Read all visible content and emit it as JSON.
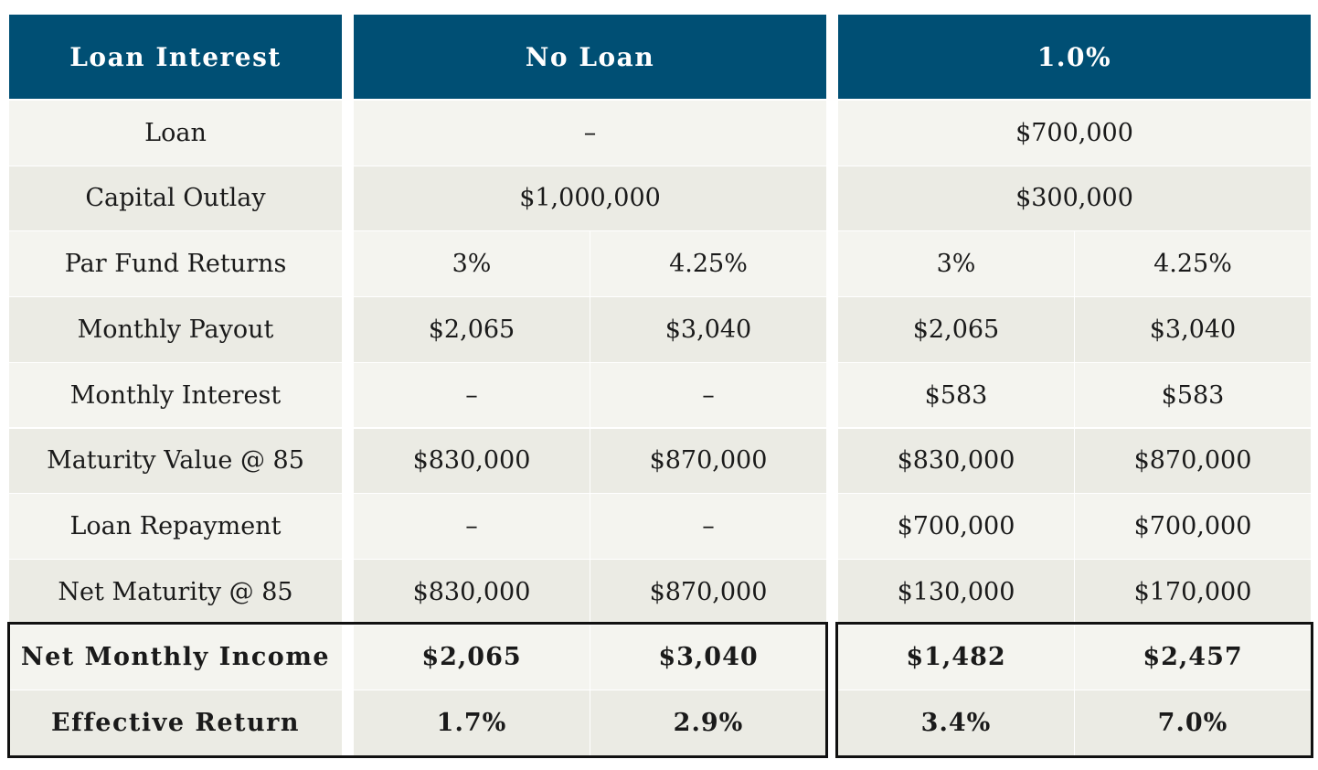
{
  "header": [
    "Loan Interest",
    "No Loan",
    "1.0%"
  ],
  "rows": [
    {
      "label": "Loan",
      "span": true,
      "cells": [
        "–",
        "$700,000"
      ]
    },
    {
      "label": "Capital Outlay",
      "span": true,
      "cells": [
        "$1,000,000",
        "$300,000"
      ]
    },
    {
      "label": "Par Fund Returns",
      "span": false,
      "cells": [
        "3%",
        "4.25%",
        "3%",
        "4.25%"
      ]
    },
    {
      "label": "Monthly Payout",
      "span": false,
      "cells": [
        "$2,065",
        "$3,040",
        "$2,065",
        "$3,040"
      ]
    },
    {
      "label": "Monthly Interest",
      "span": false,
      "cells": [
        "–",
        "–",
        "$583",
        "$583"
      ]
    },
    {
      "label": "Maturity Value @  85",
      "span": false,
      "cells": [
        "$830,000",
        "$870,000",
        "$830,000",
        "$870,000"
      ]
    },
    {
      "label": "Loan Repayment",
      "span": false,
      "cells": [
        "–",
        "–",
        "$700,000",
        "$700,000"
      ]
    },
    {
      "label": "Net Maturity @  85",
      "span": false,
      "cells": [
        "$830,000",
        "$870,000",
        "$130,000",
        "$170,000"
      ]
    },
    {
      "label": "Net Monthly Income",
      "span": false,
      "bold": true,
      "cells": [
        "$2,065",
        "$3,040",
        "$1,482",
        "$2,457"
      ]
    },
    {
      "label": "Effective Return",
      "span": false,
      "bold": true,
      "cells": [
        "1.7%",
        "2.9%",
        "3.4%",
        "7.0%"
      ]
    }
  ],
  "colors": {
    "header_bg": "#004f74",
    "row_light": "#f4f4ef",
    "row_dark": "#ebebe4"
  }
}
